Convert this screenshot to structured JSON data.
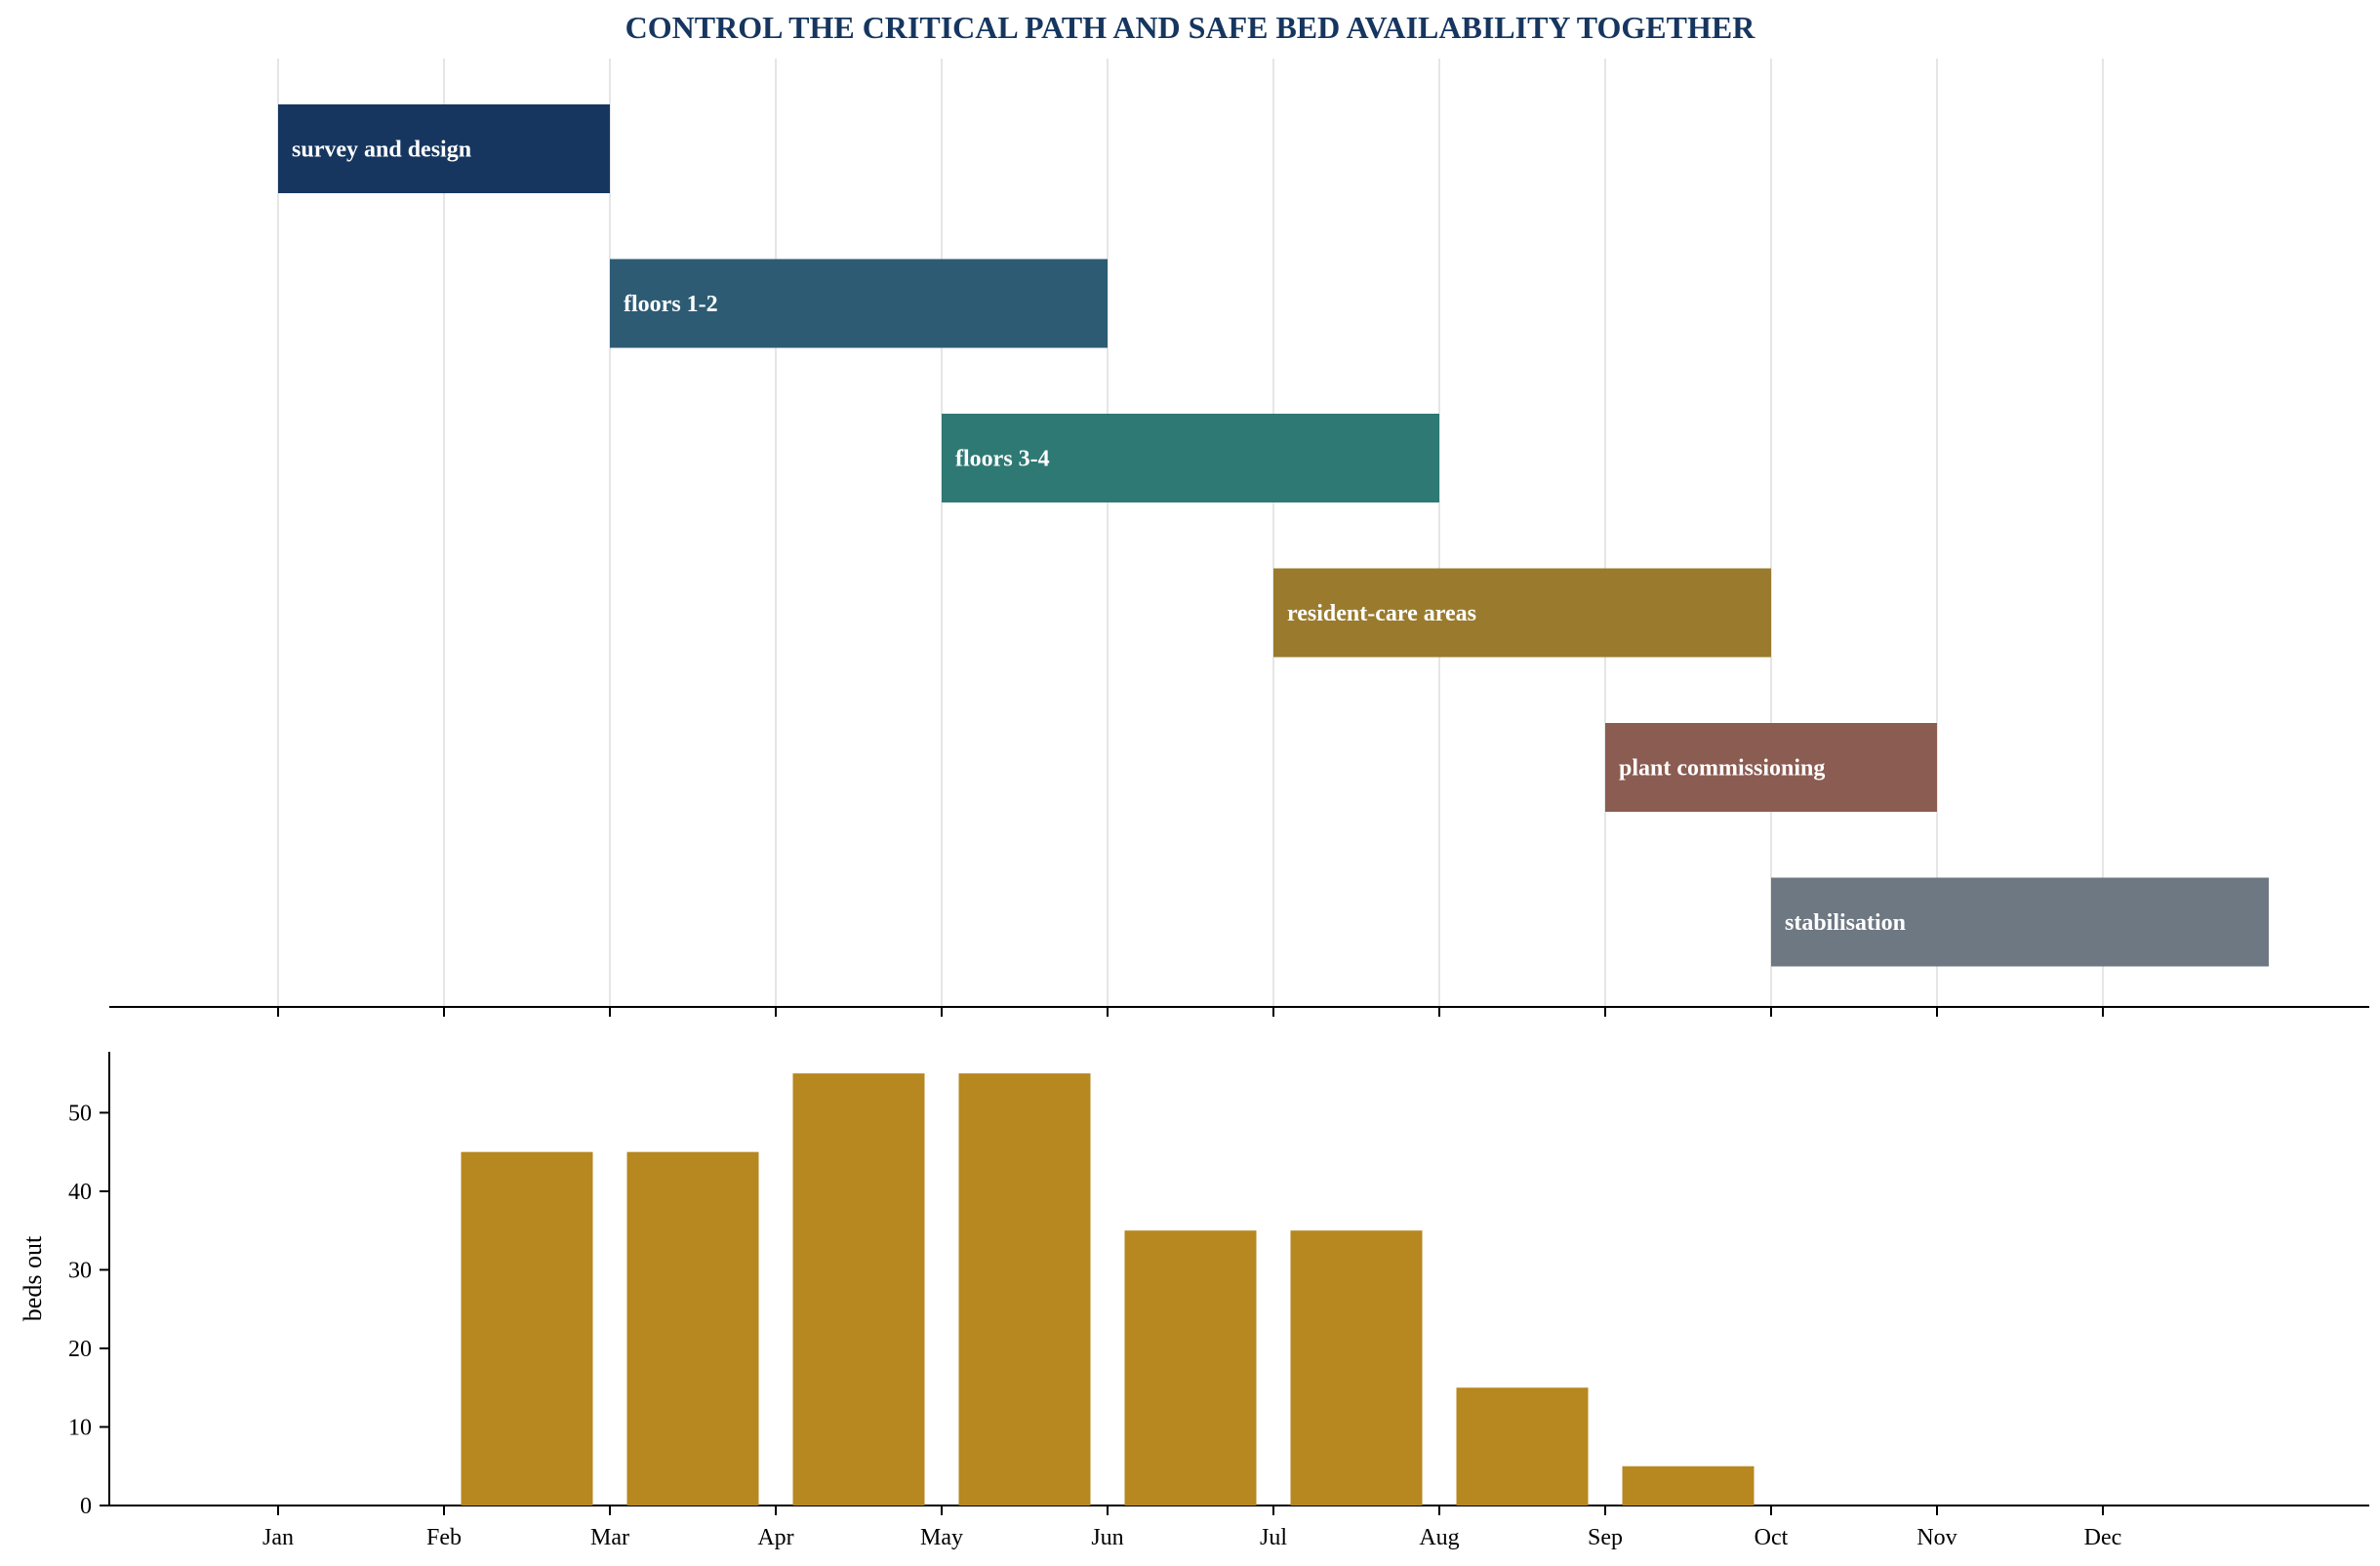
{
  "chart_data": [
    {
      "type": "gantt",
      "title": "CONTROL THE CRITICAL PATH AND SAFE BED AVAILABILITY TOGETHER",
      "x_ticks": [
        "Jan",
        "Feb",
        "Mar",
        "Apr",
        "May",
        "Jun",
        "Jul",
        "Aug",
        "Sep",
        "Oct",
        "Nov",
        "Dec"
      ],
      "grid": true,
      "tasks": [
        {
          "name": "survey and design",
          "start": "Jan",
          "end": "Mar",
          "color": "#16365f"
        },
        {
          "name": "floors 1-2",
          "start": "Mar",
          "end": "Jun",
          "color": "#2e5b74"
        },
        {
          "name": "floors 3-4",
          "start": "May",
          "end": "Aug",
          "color": "#2e7973"
        },
        {
          "name": "resident-care areas",
          "start": "Jul",
          "end": "Oct",
          "color": "#9a7b2d"
        },
        {
          "name": "plant commissioning",
          "start": "Sep",
          "end": "Nov",
          "color": "#8b5c52"
        },
        {
          "name": "stabilisation",
          "start": "Oct",
          "end": "end of Dec",
          "color": "#6e7883"
        }
      ]
    },
    {
      "type": "bar",
      "categories": [
        "Jan",
        "Feb",
        "Mar",
        "Apr",
        "May",
        "Jun",
        "Jul",
        "Aug",
        "Sep",
        "Oct",
        "Nov",
        "Dec"
      ],
      "values": [
        0,
        0,
        45,
        45,
        55,
        55,
        35,
        35,
        15,
        5,
        0,
        0
      ],
      "ylabel": "beds out",
      "ylim": [
        0,
        57.75
      ],
      "y_ticks": [
        0,
        10,
        20,
        30,
        40,
        50
      ],
      "bar_color": "#b78720",
      "bar_alignment": "centered between month ticks"
    }
  ]
}
